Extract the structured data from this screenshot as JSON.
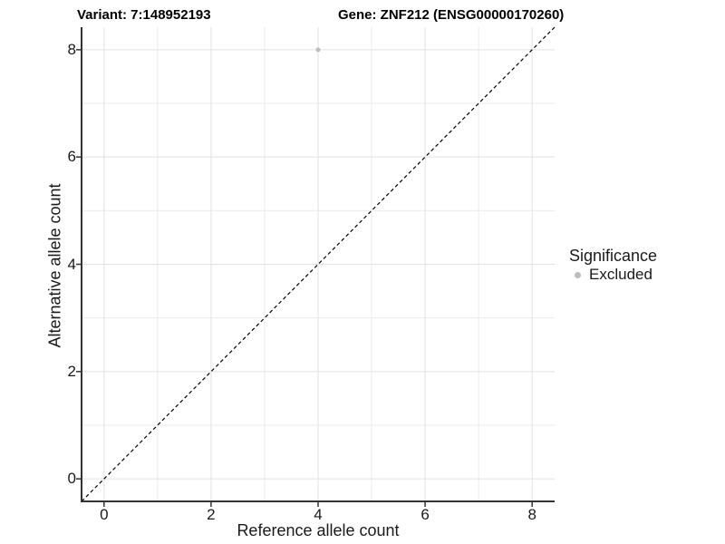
{
  "header": {
    "variant_title": "Variant: 7:148952193",
    "gene_title": "Gene: ZNF212 (ENSG00000170260)"
  },
  "axes": {
    "x_label": "Reference allele count",
    "y_label": "Alternative allele count"
  },
  "legend": {
    "title": "Significance",
    "items": [
      {
        "label": "Excluded",
        "color": "#bdbdbd"
      }
    ]
  },
  "chart_data": {
    "type": "scatter",
    "title_left": "Variant: 7:148952193",
    "title_right": "Gene: ZNF212 (ENSG00000170260)",
    "xlabel": "Reference allele count",
    "ylabel": "Alternative allele count",
    "xlim": [
      -0.42,
      8.42
    ],
    "ylim": [
      -0.42,
      8.42
    ],
    "x_ticks": [
      0,
      2,
      4,
      6,
      8
    ],
    "y_ticks": [
      0,
      2,
      4,
      6,
      8
    ],
    "x_minor_gridlines": [
      1,
      3,
      5,
      7
    ],
    "y_minor_gridlines": [
      1,
      3,
      5,
      7
    ],
    "grid": "on",
    "legend_position": "right",
    "series": [
      {
        "name": "Excluded",
        "color": "#bdbdbd",
        "point_radius": 2.5,
        "points": [
          [
            4,
            8
          ]
        ]
      }
    ],
    "reference_line": {
      "type": "identity",
      "equation": "y = x",
      "style": "dashed",
      "color": "#000000",
      "x1": -0.42,
      "y1": -0.42,
      "x2": 8.42,
      "y2": 8.42
    },
    "style": {
      "background": "#ffffff",
      "major_grid_color": "#e2e2e2",
      "minor_grid_color": "#ebebeb",
      "axis_line_color": "#333333",
      "tick_color": "#333333",
      "point_color": "#bdbdbd",
      "text_color": "#1a1a1a"
    }
  }
}
